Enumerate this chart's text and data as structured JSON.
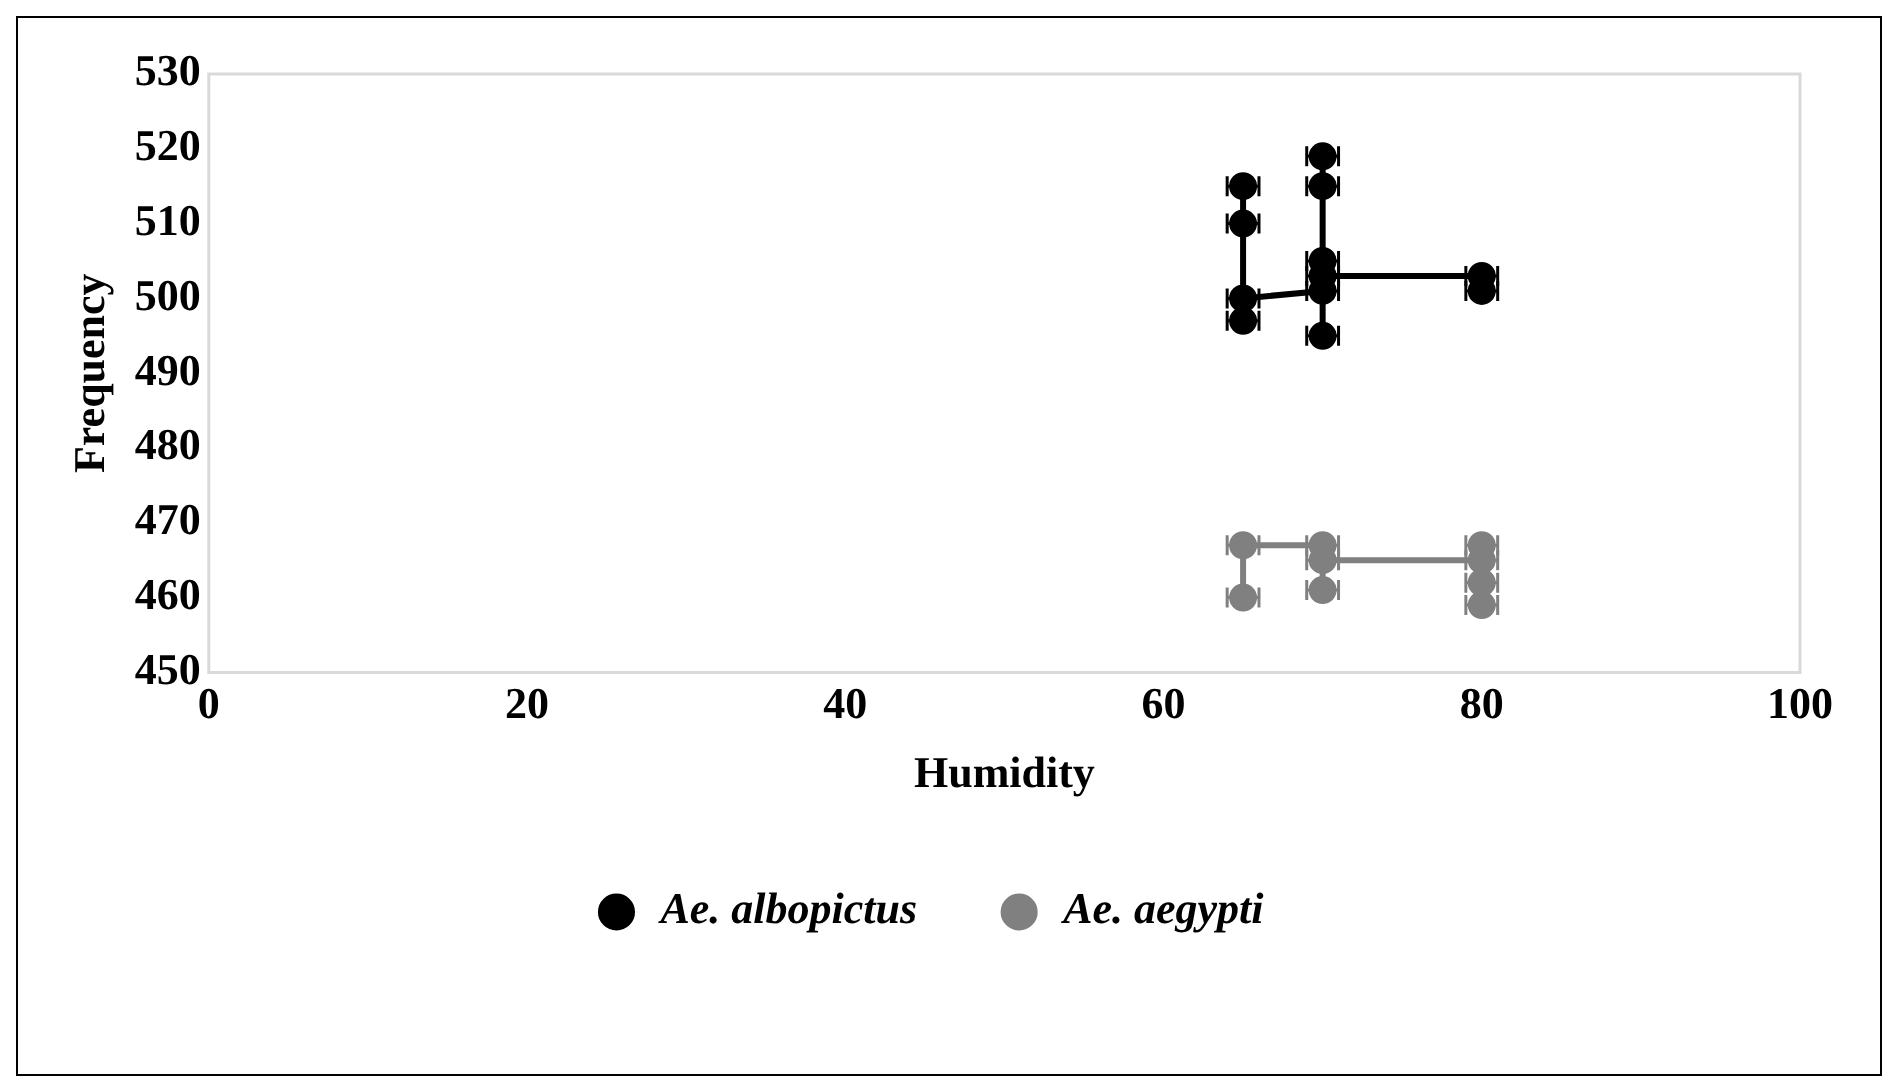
{
  "chart_data": {
    "type": "line",
    "xlabel": "Humidity",
    "ylabel": "Frequency",
    "xlim": [
      0,
      100
    ],
    "xticks": [
      0,
      20,
      40,
      60,
      80,
      100
    ],
    "ylim": [
      450,
      530
    ],
    "yticks": [
      450,
      460,
      470,
      480,
      490,
      500,
      510,
      520,
      530
    ],
    "grid": false,
    "legend": "bottom",
    "marker": "circle",
    "line_style": "solid",
    "series": [
      {
        "name": "Ae. albopictus",
        "color": "#000000",
        "x": [
          65,
          65,
          65,
          65,
          70,
          70,
          70,
          70,
          70,
          70,
          80,
          80
        ],
        "values": [
          515,
          510,
          497,
          500,
          501,
          519,
          515,
          505,
          495,
          503,
          503,
          501
        ],
        "xerrors": [
          1,
          1,
          1,
          1,
          1,
          1,
          1,
          1,
          1,
          1,
          1,
          1
        ]
      },
      {
        "name": "Ae. aegypti",
        "color": "#808080",
        "x": [
          65,
          65,
          70,
          70,
          70,
          80,
          80,
          80,
          80
        ],
        "values": [
          460,
          467,
          467,
          461,
          465,
          465,
          467,
          459,
          462
        ],
        "xerrors": [
          1,
          1,
          1,
          1,
          1,
          1,
          1,
          1,
          1
        ]
      }
    ]
  }
}
